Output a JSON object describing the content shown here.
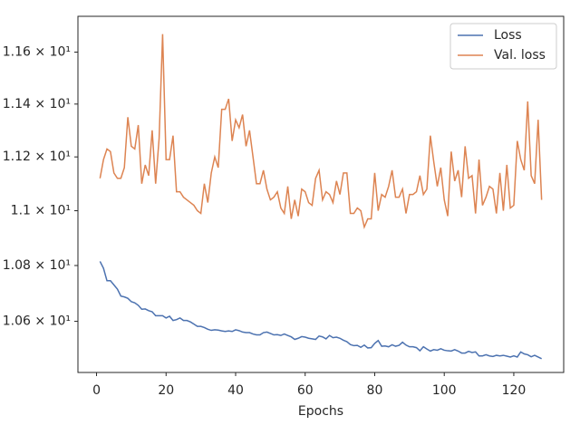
{
  "chart_data": {
    "type": "line",
    "x_label": "Epochs",
    "x": [
      1,
      2,
      3,
      4,
      5,
      6,
      7,
      8,
      9,
      10,
      11,
      12,
      13,
      14,
      15,
      16,
      17,
      18,
      19,
      20,
      21,
      22,
      23,
      24,
      25,
      26,
      27,
      28,
      29,
      30,
      31,
      32,
      33,
      34,
      35,
      36,
      37,
      38,
      39,
      40,
      41,
      42,
      43,
      44,
      45,
      46,
      47,
      48,
      49,
      50,
      51,
      52,
      53,
      54,
      55,
      56,
      57,
      58,
      59,
      60,
      61,
      62,
      63,
      64,
      65,
      66,
      67,
      68,
      69,
      70,
      71,
      72,
      73,
      74,
      75,
      76,
      77,
      78,
      79,
      80,
      81,
      82,
      83,
      84,
      85,
      86,
      87,
      88,
      89,
      90,
      91,
      92,
      93,
      94,
      95,
      96,
      97,
      98,
      99,
      100,
      101,
      102,
      103,
      104,
      105,
      106,
      107,
      108,
      109,
      110,
      111,
      112,
      113,
      114,
      115,
      116,
      117,
      118,
      119,
      120,
      121,
      122,
      123,
      124,
      125,
      126,
      127,
      128
    ],
    "series": [
      {
        "name": "Loss",
        "color": "#4c72b0",
        "values": [
          10.815,
          10.79,
          10.745,
          10.745,
          10.73,
          10.715,
          10.69,
          10.687,
          10.682,
          10.67,
          10.666,
          10.657,
          10.643,
          10.644,
          10.638,
          10.634,
          10.62,
          10.62,
          10.62,
          10.612,
          10.618,
          10.603,
          10.606,
          10.612,
          10.603,
          10.603,
          10.598,
          10.59,
          10.582,
          10.582,
          10.578,
          10.572,
          10.568,
          10.57,
          10.569,
          10.566,
          10.564,
          10.566,
          10.564,
          10.57,
          10.567,
          10.562,
          10.56,
          10.56,
          10.555,
          10.552,
          10.552,
          10.56,
          10.562,
          10.557,
          10.552,
          10.553,
          10.55,
          10.555,
          10.55,
          10.545,
          10.536,
          10.54,
          10.546,
          10.544,
          10.54,
          10.538,
          10.536,
          10.548,
          10.545,
          10.538,
          10.55,
          10.542,
          10.544,
          10.54,
          10.533,
          10.528,
          10.518,
          10.514,
          10.515,
          10.508,
          10.516,
          10.506,
          10.507,
          10.522,
          10.532,
          10.512,
          10.513,
          10.51,
          10.517,
          10.512,
          10.515,
          10.526,
          10.516,
          10.51,
          10.51,
          10.507,
          10.496,
          10.51,
          10.502,
          10.495,
          10.5,
          10.498,
          10.503,
          10.498,
          10.496,
          10.495,
          10.5,
          10.495,
          10.488,
          10.488,
          10.494,
          10.49,
          10.492,
          10.478,
          10.478,
          10.482,
          10.478,
          10.476,
          10.48,
          10.478,
          10.48,
          10.477,
          10.474,
          10.478,
          10.474,
          10.492,
          10.485,
          10.482,
          10.475,
          10.48,
          10.474,
          10.468
        ]
      },
      {
        "name": "Val. loss",
        "color": "#dd8452",
        "values": [
          11.12,
          11.19,
          11.23,
          11.22,
          11.14,
          11.12,
          11.12,
          11.16,
          11.35,
          11.24,
          11.23,
          11.32,
          11.1,
          11.17,
          11.13,
          11.3,
          11.1,
          11.27,
          11.67,
          11.19,
          11.19,
          11.28,
          11.07,
          11.07,
          11.05,
          11.04,
          11.03,
          11.02,
          11.0,
          10.99,
          11.1,
          11.03,
          11.14,
          11.2,
          11.16,
          11.38,
          11.38,
          11.42,
          11.26,
          11.34,
          11.31,
          11.36,
          11.24,
          11.3,
          11.2,
          11.1,
          11.1,
          11.15,
          11.08,
          11.04,
          11.05,
          11.07,
          11.01,
          10.99,
          11.09,
          10.97,
          11.04,
          10.98,
          11.08,
          11.07,
          11.03,
          11.02,
          11.12,
          11.15,
          11.04,
          11.07,
          11.06,
          11.03,
          11.11,
          11.06,
          11.14,
          11.14,
          10.99,
          10.99,
          11.01,
          11.0,
          10.94,
          10.97,
          10.97,
          11.14,
          11.0,
          11.06,
          11.05,
          11.09,
          11.15,
          11.05,
          11.05,
          11.08,
          10.99,
          11.06,
          11.06,
          11.07,
          11.13,
          11.06,
          11.08,
          11.28,
          11.18,
          11.09,
          11.16,
          11.04,
          10.98,
          11.22,
          11.11,
          11.15,
          11.05,
          11.24,
          11.12,
          11.13,
          10.99,
          11.19,
          11.02,
          11.05,
          11.09,
          11.08,
          10.99,
          11.14,
          11.0,
          11.17,
          11.01,
          11.02,
          11.26,
          11.19,
          11.15,
          11.41,
          11.13,
          11.1,
          11.34,
          11.04
        ]
      }
    ],
    "xlim": [
      -5.35,
      134.35
    ],
    "xticks": [
      0,
      20,
      40,
      60,
      80,
      100,
      120
    ],
    "ylim": [
      10.42,
      11.74
    ],
    "ylog": true,
    "yticks": [
      {
        "value": 10.6,
        "label": "1.06 × 10¹"
      },
      {
        "value": 10.8,
        "label": "1.08 × 10¹"
      },
      {
        "value": 11.0,
        "label": "1.1 × 10¹"
      },
      {
        "value": 11.2,
        "label": "1.12 × 10¹"
      },
      {
        "value": 11.4,
        "label": "1.14 × 10¹"
      },
      {
        "value": 11.6,
        "label": "1.16 × 10¹"
      }
    ],
    "legend": "upper right"
  }
}
